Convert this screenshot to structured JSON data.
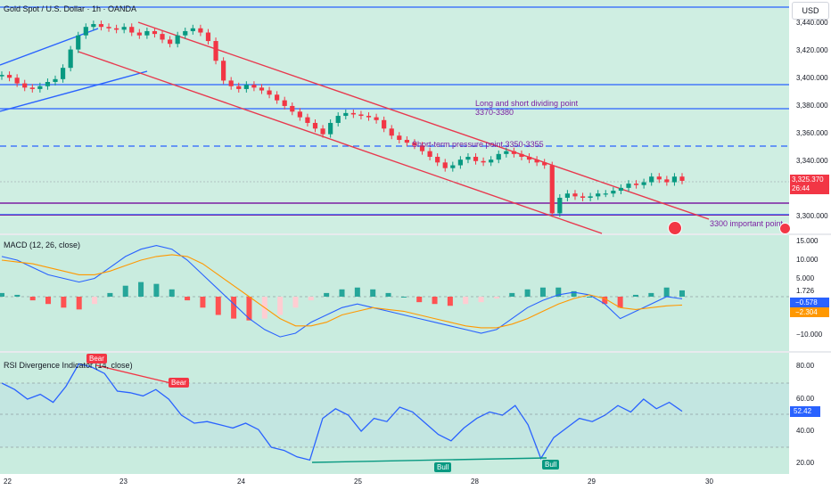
{
  "header": {
    "title": "Gold Spot / U.S. Dollar · 1h · OANDA",
    "currency": "USD"
  },
  "price_panel": {
    "y_ticks": [
      "3,440.000",
      "3,420.000",
      "3,400.000",
      "3,380.000",
      "3,360.000",
      "3,340.000",
      "3,300.000"
    ],
    "current_price": "3,325.370",
    "countdown": "26:44",
    "annotations": {
      "dividing_title": "Long and short dividing point",
      "dividing_range": "3370-3380",
      "pressure": "Short-term pressure point 3350-3355",
      "important": "3300 important point"
    }
  },
  "macd_panel": {
    "title": "MACD (12, 26, close)",
    "y_ticks": [
      "15.000",
      "10.000",
      "5.000",
      "−10.000"
    ],
    "values": {
      "zero": "1.726",
      "macd": "−0.578",
      "signal": "−2.304"
    }
  },
  "rsi_panel": {
    "title": "RSI Divergence Indicator (14, close)",
    "y_ticks": [
      "80.00",
      "60.00",
      "40.00",
      "20.00"
    ],
    "current": "52.42",
    "labels": {
      "bear1": "Bear",
      "bear2": "Bear",
      "bull1": "Bull",
      "bull2": "Bull"
    }
  },
  "x_axis": {
    "ticks": [
      "22",
      "23",
      "24",
      "25",
      "28",
      "29",
      "30"
    ]
  },
  "colors": {
    "up": "#089981",
    "down": "#f23645",
    "channel": "#e8394e",
    "level": "#2962ff",
    "purple": "#7b1fa2",
    "macd": "#2962ff",
    "signal": "#ff9800",
    "rsi": "#2962ff",
    "bg": "#cdeee0"
  },
  "chart_data": [
    {
      "type": "candlestick",
      "title": "Gold Spot / U.S. Dollar · 1h · OANDA",
      "x_ticks": [
        "22",
        "23",
        "24",
        "25",
        "28",
        "29",
        "30"
      ],
      "ylim": [
        3295,
        3450
      ],
      "close_series": [
        3400,
        3398,
        3394,
        3391,
        3390,
        3392,
        3395,
        3397,
        3405,
        3418,
        3428,
        3434,
        3436,
        3434,
        3433,
        3432,
        3434,
        3430,
        3428,
        3431,
        3429,
        3425,
        3422,
        3428,
        3431,
        3433,
        3430,
        3424,
        3410,
        3396,
        3392,
        3390,
        3393,
        3391,
        3389,
        3386,
        3382,
        3378,
        3374,
        3370,
        3366,
        3362,
        3358,
        3366,
        3371,
        3373,
        3372,
        3371,
        3370,
        3368,
        3362,
        3357,
        3354,
        3352,
        3350,
        3346,
        3342,
        3338,
        3334,
        3336,
        3340,
        3342,
        3339,
        3338,
        3340,
        3344,
        3346,
        3344,
        3342,
        3340,
        3338,
        3336,
        3302,
        3313,
        3316,
        3314,
        3313,
        3314,
        3316,
        3316,
        3318,
        3320,
        3323,
        3322,
        3324,
        3328,
        3326,
        3324,
        3328,
        3325
      ],
      "levels": [
        {
          "price": 3396,
          "label": ""
        },
        {
          "price": 3378,
          "label": "Long and short dividing point 3370-3380"
        },
        {
          "price": 3350,
          "label": "Short-term pressure point 3350-3355"
        },
        {
          "price": 3308,
          "label": ""
        },
        {
          "price": 3301,
          "label": "3300 important point"
        }
      ],
      "last_price": 3325.37
    },
    {
      "type": "line",
      "title": "MACD (12, 26, close)",
      "ylim": [
        -12,
        16
      ],
      "series": [
        {
          "name": "MACD",
          "values": [
            11,
            10,
            8,
            6,
            5,
            4,
            5,
            8,
            11,
            13,
            14,
            13,
            10,
            6,
            2,
            -2,
            -6,
            -9,
            -11,
            -10,
            -7,
            -5,
            -3,
            -2,
            -3,
            -4,
            -5,
            -6,
            -7,
            -8,
            -9,
            -10,
            -9,
            -6,
            -3,
            -1,
            0.5,
            1.2,
            0.5,
            -2,
            -6,
            -4,
            -2,
            0,
            -0.578
          ]
        },
        {
          "name": "Signal",
          "values": [
            10,
            9.5,
            9,
            8,
            7,
            6,
            6,
            7,
            8.5,
            10,
            11,
            11.5,
            11,
            9,
            6,
            3,
            0,
            -3,
            -6,
            -8,
            -8,
            -7,
            -5,
            -4,
            -3,
            -3.5,
            -4,
            -5,
            -6,
            -7,
            -8,
            -8.5,
            -8.5,
            -7.5,
            -6,
            -4,
            -2,
            -0.5,
            0.5,
            -0.5,
            -3,
            -3.5,
            -3,
            -2.5,
            -2.304
          ]
        }
      ],
      "histogram": [
        1,
        0.5,
        -1,
        -2,
        -3,
        -3.5,
        -2,
        1,
        3,
        4,
        3.5,
        2,
        -1,
        -3,
        -5,
        -6,
        -6.5,
        -6,
        -5,
        -3,
        -1,
        1,
        2,
        2.5,
        2,
        1,
        0,
        -1.5,
        -2,
        -2.5,
        -2,
        -1.5,
        -0.5,
        1,
        2,
        2.5,
        2.5,
        1.5,
        0,
        -2,
        -3,
        0.5,
        1,
        2.5,
        1.726
      ]
    },
    {
      "type": "line",
      "title": "RSI Divergence Indicator (14, close)",
      "ylim": [
        15,
        90
      ],
      "series": [
        {
          "name": "RSI",
          "values": [
            70,
            66,
            60,
            63,
            58,
            68,
            82,
            80,
            76,
            65,
            64,
            62,
            66,
            60,
            50,
            45,
            46,
            44,
            42,
            45,
            41,
            30,
            28,
            24,
            22,
            48,
            54,
            50,
            40,
            48,
            46,
            55,
            52,
            45,
            38,
            34,
            42,
            48,
            52,
            50,
            56,
            44,
            23,
            36,
            42,
            48,
            46,
            50,
            56,
            52,
            60,
            54,
            58,
            52.42
          ]
        }
      ]
    }
  ]
}
